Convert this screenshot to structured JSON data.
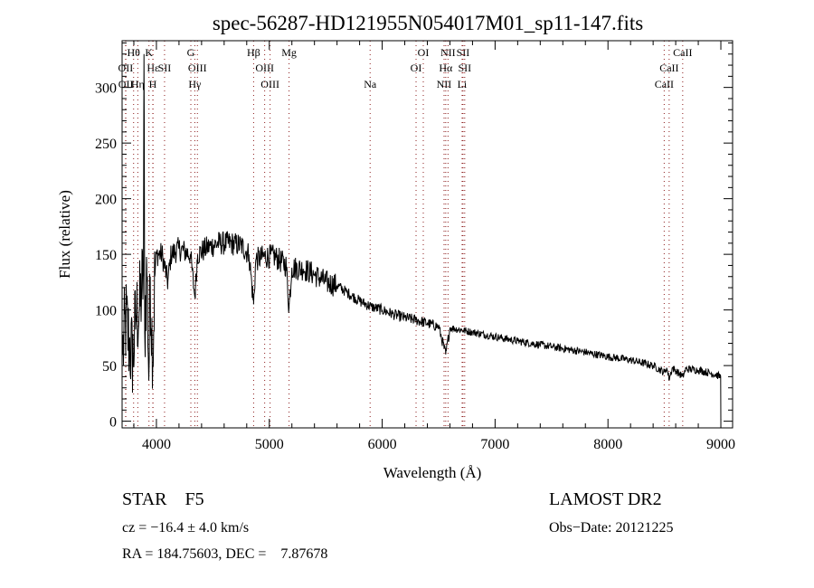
{
  "chart_data": {
    "type": "line",
    "title": "spec-56287-HD121955N054017M01_sp11-147.fits",
    "xlabel": "Wavelength (Å)",
    "ylabel": "Flux (relative)",
    "xlim": [
      3696,
      9104
    ],
    "ylim": [
      -6,
      342
    ],
    "xticks": [
      4000,
      5000,
      6000,
      7000,
      8000,
      9000
    ],
    "yticks": [
      0,
      50,
      100,
      150,
      200,
      250,
      300
    ],
    "grid": false,
    "series": [
      {
        "name": "spectrum",
        "anchors": [
          [
            3700,
            60
          ],
          [
            3730,
            90
          ],
          [
            3760,
            70
          ],
          [
            3790,
            55
          ],
          [
            3820,
            95
          ],
          [
            3850,
            100
          ],
          [
            3870,
            120
          ],
          [
            3885,
            130
          ],
          [
            3890,
            330
          ],
          [
            3896,
            80
          ],
          [
            3915,
            140
          ],
          [
            3933,
            40
          ],
          [
            3945,
            130
          ],
          [
            3968,
            50
          ],
          [
            3985,
            130
          ],
          [
            4000,
            150
          ],
          [
            4050,
            150
          ],
          [
            4101,
            125
          ],
          [
            4130,
            150
          ],
          [
            4200,
            155
          ],
          [
            4300,
            150
          ],
          [
            4340,
            112
          ],
          [
            4365,
            150
          ],
          [
            4450,
            156
          ],
          [
            4550,
            160
          ],
          [
            4650,
            160
          ],
          [
            4750,
            158
          ],
          [
            4820,
            150
          ],
          [
            4861,
            105
          ],
          [
            4880,
            145
          ],
          [
            4950,
            148
          ],
          [
            5050,
            148
          ],
          [
            5150,
            140
          ],
          [
            5175,
            102
          ],
          [
            5200,
            138
          ],
          [
            5300,
            137
          ],
          [
            5400,
            132
          ],
          [
            5500,
            125
          ],
          [
            5600,
            122
          ],
          [
            5700,
            115
          ],
          [
            5800,
            108
          ],
          [
            5900,
            103
          ],
          [
            6000,
            100
          ],
          [
            6100,
            96
          ],
          [
            6200,
            93
          ],
          [
            6300,
            91
          ],
          [
            6400,
            88
          ],
          [
            6500,
            85
          ],
          [
            6563,
            60
          ],
          [
            6600,
            84
          ],
          [
            6700,
            82
          ],
          [
            6800,
            80
          ],
          [
            7000,
            76
          ],
          [
            7200,
            72
          ],
          [
            7500,
            67
          ],
          [
            7800,
            62
          ],
          [
            8000,
            58
          ],
          [
            8200,
            55
          ],
          [
            8400,
            50
          ],
          [
            8498,
            44
          ],
          [
            8520,
            48
          ],
          [
            8542,
            38
          ],
          [
            8570,
            48
          ],
          [
            8662,
            40
          ],
          [
            8690,
            47
          ],
          [
            8800,
            46
          ],
          [
            8950,
            42
          ],
          [
            8998,
            40
          ],
          [
            9000,
            0
          ]
        ]
      }
    ],
    "line_labels": [
      {
        "label": "Hθ",
        "wl": 3798,
        "row": 0
      },
      {
        "label": "K",
        "wl": 3934,
        "row": 0
      },
      {
        "label": "G",
        "wl": 4305,
        "row": 0
      },
      {
        "label": "Hβ",
        "wl": 4861,
        "row": 0
      },
      {
        "label": "Mg",
        "wl": 5175,
        "row": 0
      },
      {
        "label": "OI",
        "wl": 6364,
        "row": 0
      },
      {
        "label": "NII",
        "wl": 6583,
        "row": 0
      },
      {
        "label": "SII",
        "wl": 6716,
        "row": 0
      },
      {
        "label": "CaII",
        "wl": 8662,
        "row": 0
      },
      {
        "label": "OII",
        "wl": 3727,
        "row": 1
      },
      {
        "label": "Hε",
        "wl": 3970,
        "row": 1
      },
      {
        "label": "SII",
        "wl": 4072,
        "row": 1
      },
      {
        "label": "OIII",
        "wl": 4363,
        "row": 1
      },
      {
        "label": "OIII",
        "wl": 4959,
        "row": 1
      },
      {
        "label": "OI",
        "wl": 6300,
        "row": 1
      },
      {
        "label": "Hα",
        "wl": 6563,
        "row": 1
      },
      {
        "label": "SII",
        "wl": 6731,
        "row": 1
      },
      {
        "label": "CaII",
        "wl": 8542,
        "row": 1
      },
      {
        "label": "OII",
        "wl": 3729,
        "row": 2
      },
      {
        "label": "Hη",
        "wl": 3835,
        "row": 2
      },
      {
        "label": "H",
        "wl": 3968,
        "row": 2
      },
      {
        "label": "Hγ",
        "wl": 4340,
        "row": 2
      },
      {
        "label": "OIII",
        "wl": 5007,
        "row": 2
      },
      {
        "label": "Na",
        "wl": 5893,
        "row": 2
      },
      {
        "label": "NII",
        "wl": 6548,
        "row": 2
      },
      {
        "label": "Li",
        "wl": 6708,
        "row": 2
      },
      {
        "label": "CaII",
        "wl": 8498,
        "row": 2
      }
    ],
    "colors": {
      "line": "#000000",
      "marker_lines": "#8b1a1a"
    }
  },
  "info": {
    "class": "STAR    F5",
    "survey": "LAMOST DR2",
    "cz": "cz = −16.4 ± 4.0 km/s",
    "obs_date": "Obs−Date: 20121225",
    "coords": "RA = 184.75603, DEC =    7.87678"
  }
}
